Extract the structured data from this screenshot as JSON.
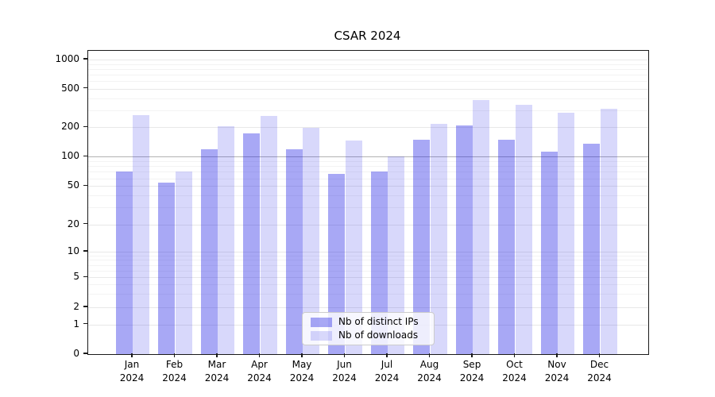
{
  "chart_data": {
    "type": "bar",
    "title": "CSAR 2024",
    "yscale": "symlog",
    "grid": true,
    "legend_position": "lower center",
    "ylim": [
      0,
      1300
    ],
    "categories": [
      "Jan 2024",
      "Feb 2024",
      "Mar 2024",
      "Apr 2024",
      "May 2024",
      "Jun 2024",
      "Jul 2024",
      "Aug 2024",
      "Sep 2024",
      "Oct 2024",
      "Nov 2024",
      "Dec 2024"
    ],
    "series": [
      {
        "name": "Nb of distinct IPs",
        "color": "rgba(25,25,230,0.38)",
        "values": [
          70,
          54,
          118,
          172,
          118,
          66,
          70,
          148,
          210,
          150,
          113,
          135
        ]
      },
      {
        "name": "Nb of downloads",
        "color": "rgba(25,25,230,0.17)",
        "values": [
          268,
          70,
          205,
          262,
          196,
          145,
          101,
          215,
          380,
          340,
          285,
          310
        ]
      }
    ],
    "yticks": [
      {
        "label": "0",
        "value": 0
      },
      {
        "label": "1",
        "value": 1
      },
      {
        "label": "2",
        "value": 2
      },
      {
        "label": "5",
        "value": 5
      },
      {
        "label": "10",
        "value": 10
      },
      {
        "label": "20",
        "value": 20
      },
      {
        "label": "50",
        "value": 50
      },
      {
        "label": "100",
        "value": 100
      },
      {
        "label": "200",
        "value": 200
      },
      {
        "label": "500",
        "value": 500
      },
      {
        "label": "1000",
        "value": 1000
      }
    ]
  }
}
